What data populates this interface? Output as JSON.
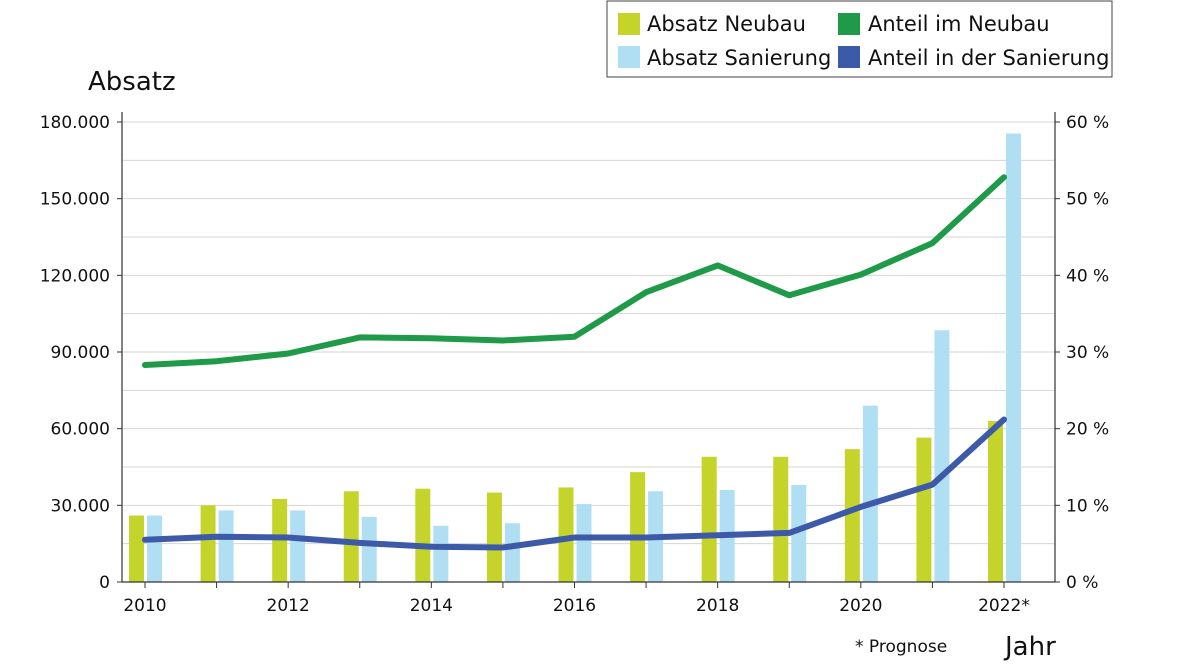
{
  "chart_data": {
    "type": "bar",
    "title": "",
    "ylabel": "Absatz",
    "xlabel": "Jahr",
    "footnote": "* Prognose",
    "categories": [
      "2010",
      "2011",
      "2012",
      "2013",
      "2014",
      "2015",
      "2016",
      "2017",
      "2018",
      "2019",
      "2020",
      "2021",
      "2022*"
    ],
    "x_tick_labels": [
      "2010",
      "2012",
      "2014",
      "2016",
      "2018",
      "2020",
      "2022*"
    ],
    "ylim": [
      0,
      180000
    ],
    "y_ticks": [
      "0",
      "30.000",
      "60.000",
      "90.000",
      "120.000",
      "150.000",
      "180.000"
    ],
    "y2lim": [
      0,
      60
    ],
    "y2_ticks": [
      "0 %",
      "10 %",
      "20 %",
      "30 %",
      "40 %",
      "50 %",
      "60 %"
    ],
    "grid": true,
    "legend_position": "top-right",
    "series": [
      {
        "name": "Absatz Neubau",
        "kind": "bar",
        "axis": "left",
        "color": "#c5d42a",
        "values": [
          26000,
          30000,
          32500,
          35500,
          36500,
          35000,
          37000,
          43000,
          49000,
          49000,
          52000,
          56500,
          63000
        ]
      },
      {
        "name": "Absatz Sanierung",
        "kind": "bar",
        "axis": "left",
        "color": "#b0def2",
        "values": [
          26000,
          28000,
          28000,
          25500,
          22000,
          23000,
          30500,
          35500,
          36000,
          38000,
          69000,
          98500,
          175500
        ]
      },
      {
        "name": "Anteil im Neubau",
        "kind": "line",
        "axis": "right",
        "color": "#1e9a48",
        "values": [
          28.3,
          28.8,
          29.8,
          31.9,
          31.8,
          31.5,
          32.0,
          37.8,
          41.3,
          37.4,
          40.1,
          44.2,
          52.8
        ]
      },
      {
        "name": "Anteil in der Sanierung",
        "kind": "line",
        "axis": "right",
        "color": "#3d5aa8",
        "values": [
          5.5,
          5.9,
          5.8,
          5.1,
          4.6,
          4.5,
          5.8,
          5.8,
          6.1,
          6.4,
          9.8,
          12.7,
          21.2
        ]
      }
    ],
    "legend": [
      {
        "name": "Absatz Neubau",
        "color": "#c5d42a"
      },
      {
        "name": "Anteil im Neubau",
        "color": "#1e9a48"
      },
      {
        "name": "Absatz Sanierung",
        "color": "#b0def2"
      },
      {
        "name": "Anteil in der Sanierung",
        "color": "#3d5aa8"
      }
    ]
  }
}
